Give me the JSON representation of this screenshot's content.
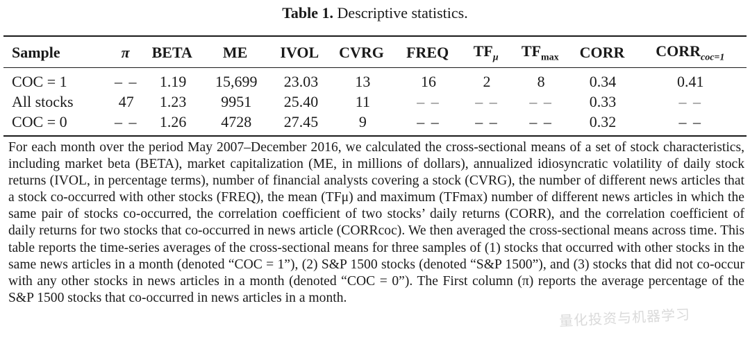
{
  "caption": {
    "label": "Table 1.",
    "text": "Descriptive statistics."
  },
  "table": {
    "headers": [
      {
        "main": "Sample",
        "sub": ""
      },
      {
        "main": "π",
        "sub": ""
      },
      {
        "main": "BETA",
        "sub": ""
      },
      {
        "main": "ME",
        "sub": ""
      },
      {
        "main": "IVOL",
        "sub": ""
      },
      {
        "main": "CVRG",
        "sub": ""
      },
      {
        "main": "FREQ",
        "sub": ""
      },
      {
        "main": "TF",
        "sub": "μ"
      },
      {
        "main": "TF",
        "sub": "max"
      },
      {
        "main": "CORR",
        "sub": ""
      },
      {
        "main": "CORR",
        "sub": "coc=1"
      }
    ],
    "rows": [
      [
        "COC = 1",
        "– –",
        "1.19",
        "15,699",
        "23.03",
        "13",
        "16",
        "2",
        "8",
        "0.34",
        "0.41"
      ],
      [
        "All stocks",
        "47",
        "1.23",
        "9951",
        "25.40",
        "11",
        "– –",
        "– –",
        "– –",
        "0.33",
        "– –"
      ],
      [
        "COC = 0",
        "– –",
        "1.26",
        "4728",
        "27.45",
        "9",
        "– –",
        "– –",
        "– –",
        "0.32",
        "– –"
      ]
    ]
  },
  "note": {
    "text": "For each month over the period May 2007–December 2016, we calculated the cross-sectional means of a set of stock characteristics, including market beta (BETA), market capitalization (ME, in millions of dollars), annualized idiosyncratic volatility of daily stock returns (IVOL, in percentage terms), number of financial analysts covering a stock (CVRG), the number of different news articles that a stock co-occurred with other stocks (FREQ), the mean (TFμ) and maximum (TFmax) number of different news articles in which the same pair of stocks co-occurred, the correlation coefficient of two stocks’ daily returns (CORR), and the correlation coefficient of daily returns for two stocks that co-occurred in news article (CORRcoc). We then averaged the cross-sectional means across time. This table reports the time-series averages of the cross-sectional means for three samples of (1) stocks that occurred with other stocks in the same news articles in a month (denoted “COC = 1”), (2) S&P 1500 stocks (denoted “S&P 1500”), and (3) stocks that did not co-occur with any other stocks in news articles in a month (denoted “COC = 0”). The First column (π) reports the average percentage of the S&P 1500 stocks that co-occurred in news articles in a month."
  },
  "watermark": {
    "text": "量化投资与机器学习"
  }
}
